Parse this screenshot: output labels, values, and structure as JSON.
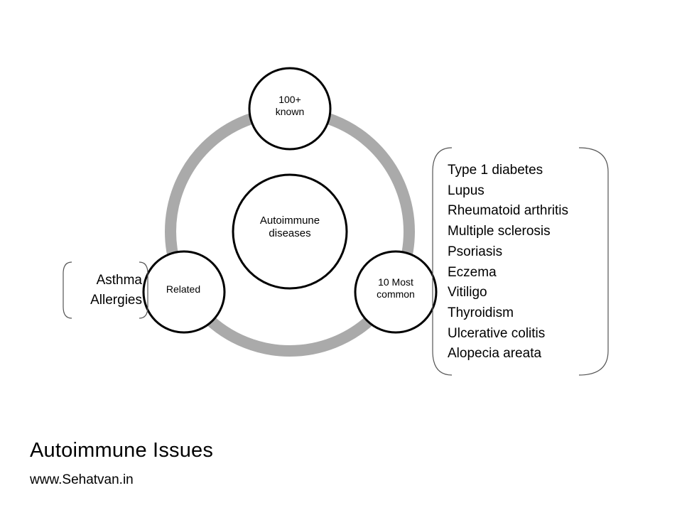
{
  "diagram": {
    "center": "Autoimmune\ndiseases",
    "top_node": "100+\nknown",
    "right_node": "10 Most\ncommon",
    "left_node": "Related",
    "related_items": [
      "Asthma",
      "Allergies"
    ],
    "common_items": [
      "Type 1 diabetes",
      "Lupus",
      "Rheumatoid arthritis",
      "Multiple sclerosis",
      "Psoriasis",
      "Eczema",
      "Vitiligo",
      "Thyroidism",
      "Ulcerative colitis",
      "Alopecia areata"
    ]
  },
  "footer": {
    "title": "Autoimmune  Issues",
    "website": "www.Sehatvan.in"
  },
  "colors": {
    "ring": "#aaaaaa",
    "outline": "#000000",
    "bracket": "#555555",
    "background": "#ffffff"
  }
}
